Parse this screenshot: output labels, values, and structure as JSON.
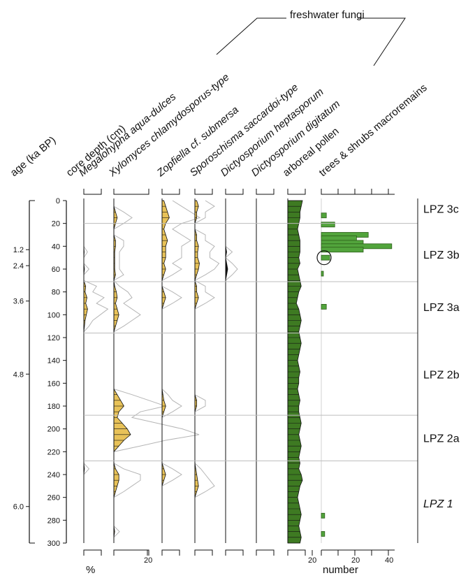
{
  "chart_data": {
    "type": "area",
    "title": "",
    "group_label": "freshwater fungi",
    "age_axis": {
      "label": "age (ka BP)",
      "ticks": [
        {
          "label": "1.2",
          "depth": 43
        },
        {
          "label": "2.4",
          "depth": 57
        },
        {
          "label": "3.6",
          "depth": 88
        },
        {
          "label": "4.8",
          "depth": 152
        },
        {
          "label": "6.0",
          "depth": 268
        }
      ]
    },
    "depth_axis": {
      "label": "core depth (cm)",
      "range": [
        0,
        300
      ],
      "ticks": [
        "0",
        "20",
        "40",
        "60",
        "80",
        "100",
        "120",
        "140",
        "160",
        "180",
        "200",
        "220",
        "240",
        "260",
        "280",
        "300"
      ]
    },
    "percent_label": "%",
    "number_label": "number",
    "scale_labels": {
      "fungi": "20",
      "pollen": "20",
      "macro_20": "20",
      "macro_40": "40"
    },
    "zone_boundaries": [
      20,
      71,
      116,
      188,
      228
    ],
    "zones": [
      {
        "label": "LPZ 3c",
        "depth": 7,
        "italic": false
      },
      {
        "label": "LPZ 3b",
        "depth": 47,
        "italic": false
      },
      {
        "label": "LPZ 3a",
        "depth": 93,
        "italic": false
      },
      {
        "label": "LPZ 2b",
        "depth": 152,
        "italic": false
      },
      {
        "label": "LPZ 2a",
        "depth": 208,
        "italic": false
      },
      {
        "label": "LPZ 1",
        "depth": 265,
        "italic": true
      }
    ],
    "depths": [
      0,
      5,
      10,
      15,
      20,
      25,
      30,
      35,
      40,
      45,
      50,
      55,
      60,
      65,
      70,
      75,
      80,
      85,
      90,
      95,
      100,
      105,
      110,
      115,
      120,
      125,
      130,
      135,
      140,
      145,
      150,
      155,
      160,
      165,
      170,
      175,
      180,
      185,
      190,
      195,
      200,
      205,
      210,
      215,
      220,
      225,
      230,
      235,
      240,
      245,
      250,
      255,
      260,
      265,
      270,
      275,
      280,
      285,
      290,
      295,
      300
    ],
    "series": [
      {
        "name": "Megalohypha aqua-dulces",
        "italic": true,
        "color": "#E8C258",
        "type": "area",
        "values": [
          0,
          0,
          0,
          0,
          0,
          0,
          0,
          0,
          0,
          0.3,
          0,
          0,
          0.5,
          0,
          0,
          1.5,
          1,
          2.5,
          1.5,
          3,
          2,
          1,
          0.5,
          0,
          0,
          0,
          0,
          0,
          0,
          0,
          0,
          0,
          0,
          0,
          0,
          0,
          0,
          0,
          0,
          0,
          0,
          0,
          0,
          0,
          0,
          0,
          0,
          0.5,
          0,
          0,
          0,
          0,
          0,
          0,
          0,
          0,
          0,
          0,
          0,
          0,
          0
        ]
      },
      {
        "name": "Xylomyces chlamydosporus-type",
        "italic": true,
        "color": "#E8C258",
        "type": "area",
        "values": [
          0,
          0,
          1,
          2,
          1,
          0,
          0,
          1,
          1,
          0.5,
          0.5,
          0.5,
          0.5,
          1,
          0,
          0.5,
          1.5,
          2,
          1,
          2,
          3,
          2,
          1,
          0,
          0,
          0,
          0,
          0,
          0,
          0,
          0,
          0,
          0,
          0,
          2,
          4,
          6,
          3,
          2,
          5,
          8,
          10,
          6,
          3,
          0,
          0,
          0,
          1,
          3,
          3,
          2,
          1,
          0,
          0,
          0,
          0,
          0,
          0,
          0.5,
          0,
          0
        ]
      },
      {
        "name": "Zopfiella cf. submersa",
        "italic": true,
        "color": "#E8C258",
        "type": "area",
        "values": [
          1,
          2,
          3,
          4,
          2,
          1,
          2,
          3,
          2,
          2,
          2,
          1,
          2,
          1,
          0,
          0,
          1,
          2,
          1,
          0,
          0,
          0,
          0,
          0,
          0,
          0,
          0,
          0,
          0,
          0,
          0,
          0,
          0,
          0,
          0.5,
          1,
          2,
          1,
          0,
          0,
          0,
          0,
          0,
          0,
          0,
          0,
          0,
          1,
          2,
          1,
          0,
          0,
          0,
          0,
          0,
          0,
          0,
          0,
          0,
          0,
          0
        ]
      },
      {
        "name": "Sporoschisma saccardoi-type",
        "italic": true,
        "color": "#E8C258",
        "type": "area",
        "values": [
          1,
          2,
          1,
          1,
          0,
          0,
          1,
          1,
          2,
          1.5,
          1.5,
          2.5,
          2,
          1,
          0,
          1,
          1,
          2,
          1,
          0,
          0,
          0,
          0,
          0,
          0,
          0,
          0,
          0,
          0,
          0,
          0,
          0,
          0,
          0,
          0,
          1,
          1,
          0,
          0,
          0,
          0,
          0,
          0,
          0,
          0,
          0,
          0,
          0.5,
          1,
          1.5,
          2,
          1,
          0,
          0,
          0,
          0,
          0,
          0,
          0,
          0,
          0
        ]
      },
      {
        "name": "Dictyosporium heptasporum",
        "italic": true,
        "color": "#111111",
        "type": "area",
        "values": [
          0,
          0,
          0,
          0,
          0,
          0,
          0,
          0,
          0,
          0.5,
          0,
          0.5,
          1,
          0.5,
          0,
          0,
          0,
          0,
          0,
          0,
          0,
          0,
          0,
          0,
          0,
          0,
          0,
          0,
          0,
          0,
          0,
          0,
          0,
          0,
          0,
          0,
          0,
          0,
          0,
          0,
          0,
          0,
          0,
          0,
          0,
          0,
          0,
          0,
          0,
          0,
          0,
          0,
          0,
          0,
          0,
          0,
          0,
          0,
          0,
          0,
          0
        ]
      },
      {
        "name": "Dictyosporium digitatum",
        "italic": true,
        "color": "#111111",
        "type": "area",
        "values": [
          0,
          0,
          0,
          0,
          0,
          0,
          0,
          0,
          0,
          0,
          0,
          0,
          0,
          0,
          0,
          0,
          0,
          0,
          0,
          0,
          0,
          0,
          0,
          0,
          0,
          0,
          0,
          0,
          0,
          0,
          0,
          0,
          0,
          0,
          0,
          0,
          0,
          0,
          0,
          0,
          0,
          0,
          0,
          0,
          0,
          0,
          0,
          0,
          0,
          0,
          0,
          0,
          0,
          0,
          0,
          0,
          0,
          0,
          0,
          0,
          0
        ]
      },
      {
        "name": "arboreal pollen",
        "italic": false,
        "color": "#3E7A22",
        "type": "area",
        "values": [
          12,
          11,
          10,
          10,
          9,
          8,
          9,
          10,
          10,
          10,
          9,
          10,
          8,
          9,
          10,
          11,
          9,
          8,
          7,
          9,
          10,
          11,
          10,
          9,
          10,
          11,
          10,
          9,
          8,
          9,
          10,
          9,
          9,
          8,
          9,
          10,
          9,
          9,
          10,
          11,
          10,
          9,
          10,
          11,
          10,
          9,
          10,
          9,
          11,
          12,
          10,
          9,
          8,
          9,
          10,
          11,
          10,
          9,
          10,
          11,
          10
        ]
      },
      {
        "name": "trees & shrubs macroremains",
        "italic": false,
        "color": "#52A43C",
        "type": "bar",
        "points": [
          {
            "depth": 13,
            "value": 3
          },
          {
            "depth": 21,
            "value": 8
          },
          {
            "depth": 30,
            "value": 28
          },
          {
            "depth": 33,
            "value": 21
          },
          {
            "depth": 37,
            "value": 25
          },
          {
            "depth": 40,
            "value": 42
          },
          {
            "depth": 43,
            "value": 25
          },
          {
            "depth": 50,
            "value": 5
          },
          {
            "depth": 64,
            "value": 1
          },
          {
            "depth": 93,
            "value": 3
          },
          {
            "depth": 276,
            "value": 2
          },
          {
            "depth": 292,
            "value": 2
          }
        ]
      }
    ]
  }
}
